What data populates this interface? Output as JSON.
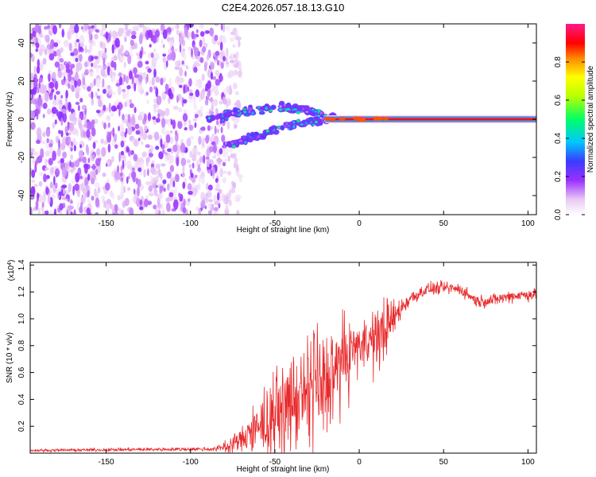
{
  "chart_data": [
    {
      "type": "heatmap",
      "title": "C2E4.2026.057.18.13.G10",
      "xlabel": "Height of straight line (km)",
      "ylabel": "Frequency (Hz)",
      "xlim": [
        -195,
        105
      ],
      "ylim": [
        -50,
        50
      ],
      "xticks": [
        -150,
        -100,
        -50,
        0,
        50,
        100
      ],
      "yticks": [
        -40,
        -20,
        0,
        20,
        40
      ],
      "colorbar": {
        "label": "Normalized spectral amplitude",
        "range": [
          0,
          1
        ],
        "ticks": [
          0.0,
          0.2,
          0.4,
          0.6,
          0.8
        ],
        "tick_labels": [
          "0.0",
          "0.2",
          "0.4",
          "0.6",
          "0.8"
        ],
        "colormap": "rainbow (white-purple-blue-cyan-green-yellow-orange-red-magenta)"
      },
      "regions": [
        {
          "name": "noise",
          "x_range": [
            -195,
            -80
          ],
          "freq_range": [
            -50,
            50
          ],
          "amplitude": [
            0.0,
            0.2
          ]
        },
        {
          "name": "branch_upper",
          "points": [
            [
              -90,
              0
            ],
            [
              -70,
              4
            ],
            [
              -50,
              6
            ],
            [
              -30,
              5
            ],
            [
              -15,
              1
            ]
          ],
          "amplitude": [
            0.1,
            0.5
          ]
        },
        {
          "name": "branch_lower",
          "points": [
            [
              -80,
              -14
            ],
            [
              -60,
              -9
            ],
            [
              -45,
              -4
            ],
            [
              -30,
              -1
            ],
            [
              -15,
              0
            ]
          ],
          "amplitude": [
            0.1,
            0.5
          ]
        },
        {
          "name": "steady_tone",
          "x_range": [
            -20,
            105
          ],
          "frequency": 0,
          "amplitude": [
            0.7,
            1.0
          ]
        }
      ]
    },
    {
      "type": "line",
      "xlabel": "Height of straight line (km)",
      "ylabel": "SNR (10 * v/v)",
      "y_multiplier": "(x10⁴)",
      "y_multiplier_base": "(x10",
      "y_multiplier_exp": "4",
      "y_multiplier_close": ")",
      "xlim": [
        -195,
        105
      ],
      "ylim": [
        0,
        1.42
      ],
      "xticks": [
        -150,
        -100,
        -50,
        0,
        50,
        100
      ],
      "yticks": [
        0.2,
        0.4,
        0.6,
        0.8,
        1.0,
        1.2,
        1.4
      ],
      "ytick_labels": [
        "0.2",
        "0.4",
        "0.6",
        "0.8",
        "1.0",
        "1.2",
        "1.4"
      ],
      "color": "#e8282a",
      "series": [
        {
          "name": "SNR",
          "x": [
            -195,
            -150,
            -100,
            -85,
            -80,
            -75,
            -70,
            -65,
            -60,
            -55,
            -50,
            -45,
            -40,
            -35,
            -30,
            -25,
            -20,
            -15,
            -10,
            -5,
            0,
            5,
            10,
            15,
            20,
            25,
            30,
            40,
            50,
            60,
            70,
            80,
            90,
            100,
            105
          ],
          "mean": [
            0.02,
            0.025,
            0.03,
            0.03,
            0.05,
            0.07,
            0.1,
            0.13,
            0.17,
            0.22,
            0.27,
            0.32,
            0.37,
            0.4,
            0.44,
            0.48,
            0.52,
            0.58,
            0.65,
            0.74,
            0.8,
            0.85,
            0.8,
            0.95,
            1.0,
            1.08,
            1.15,
            1.22,
            1.23,
            1.22,
            1.13,
            1.14,
            1.17,
            1.18,
            1.18
          ],
          "amp": [
            0.008,
            0.01,
            0.012,
            0.015,
            0.04,
            0.06,
            0.08,
            0.12,
            0.16,
            0.2,
            0.24,
            0.26,
            0.3,
            0.32,
            0.34,
            0.35,
            0.35,
            0.33,
            0.3,
            0.22,
            0.18,
            0.16,
            0.2,
            0.22,
            0.12,
            0.07,
            0.05,
            0.04,
            0.04,
            0.04,
            0.04,
            0.04,
            0.04,
            0.04,
            0.04
          ]
        }
      ]
    }
  ]
}
